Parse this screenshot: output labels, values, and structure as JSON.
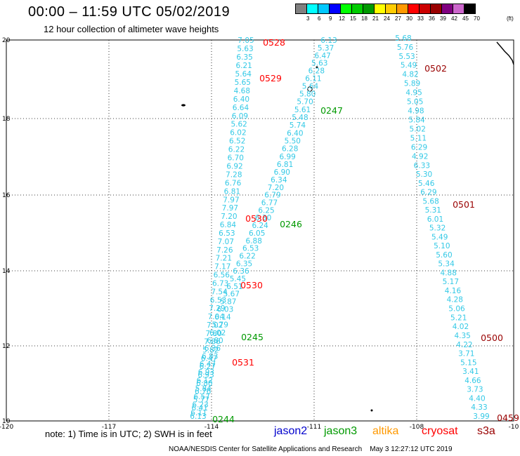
{
  "header": {
    "title": "00:00 – 11:59 UTC 05/02/2019",
    "subtitle": "12 hour collection of altimeter wave heights"
  },
  "legend": {
    "colors": [
      "#808080",
      "#00ffff",
      "#00c8ff",
      "#0000ff",
      "#00ff00",
      "#00cc00",
      "#009900",
      "#ffff00",
      "#ffcc00",
      "#ff9900",
      "#ff0000",
      "#cc0000",
      "#990000",
      "#800080",
      "#cc66cc",
      "#000000"
    ],
    "ticks": [
      "3",
      "6",
      "9",
      "12",
      "15",
      "18",
      "21",
      "24",
      "27",
      "30",
      "33",
      "36",
      "39",
      "42",
      "45",
      "70"
    ],
    "unit": "(ft)"
  },
  "chart_data": {
    "type": "map",
    "x_ticks": [
      "-120",
      "-117",
      "-114",
      "-111",
      "-108",
      "-10"
    ],
    "y_ticks": [
      "20",
      "18",
      "16",
      "14",
      "12",
      "10"
    ],
    "grid": true,
    "tracks": [
      {
        "id": "A",
        "values": [
          "7.05",
          "5.63",
          "6.35",
          "6.21",
          "5.64",
          "5.65",
          "4.68",
          "6.40",
          "6.64",
          "6.09",
          "5.62",
          "6.02",
          "6.52",
          "6.22",
          "6.70",
          "6.92",
          "7.28",
          "6.76",
          "6.81",
          "7.97",
          "7.97",
          "7.20",
          "6.84",
          "6.53",
          "7.07",
          "7.26",
          "7.21",
          "7.17",
          "6.56",
          "6.73",
          "7.54",
          "6.53",
          "7.29",
          "7.04",
          "7.02",
          "7.80",
          "7.86",
          "5.82",
          "6.47",
          "6.27",
          "6.93",
          "6.80",
          "6.76",
          "5.77",
          "6.41",
          "6.13"
        ]
      },
      {
        "id": "B",
        "values": [
          "6.13",
          "5.37",
          "6.47",
          "5.63",
          "6.28",
          "6.11",
          "5.64",
          "5.80",
          "5.70",
          "5.61",
          "5.48",
          "5.74",
          "6.40",
          "5.50",
          "6.28",
          "6.99",
          "6.81",
          "6.90",
          "6.34",
          "7.20",
          "6.79",
          "6.77",
          "6.25",
          "6.30",
          "6.24",
          "6.05",
          "6.88",
          "6.53",
          "6.22",
          "6.35",
          "6.36",
          "5.45",
          "6.51",
          "5.67",
          "5.87",
          "6.03",
          "6.14",
          "5.79",
          "6.02",
          "6.80",
          "6.36",
          "6.83",
          "6.47",
          "6.93",
          "6.12",
          "5.84",
          "6.57",
          "6.23",
          "6.11"
        ]
      },
      {
        "id": "C",
        "values": [
          "5.68",
          "5.76",
          "5.53",
          "5.49",
          "4.82",
          "5.89",
          "4.95",
          "5.05",
          "4.98",
          "5.84",
          "5.02",
          "5.11",
          "6.29",
          "4.92",
          "6.33",
          "5.30",
          "5.46",
          "6.29",
          "5.68",
          "5.31",
          "6.01",
          "5.32",
          "5.49",
          "5.10",
          "5.60",
          "5.34",
          "4.88",
          "5.17",
          "4.16",
          "4.28",
          "5.06",
          "5.21",
          "4.02",
          "4.35",
          "4.22",
          "3.71",
          "5.15",
          "3.41",
          "4.66",
          "3.73",
          "4.40",
          "4.33",
          "3.99"
        ]
      }
    ],
    "pass_labels": [
      {
        "text": "0528",
        "color": "#ff0000"
      },
      {
        "text": "0529",
        "color": "#ff0000"
      },
      {
        "text": "0530",
        "color": "#ff0000"
      },
      {
        "text": "0530",
        "color": "#ff0000"
      },
      {
        "text": "0531",
        "color": "#ff0000"
      },
      {
        "text": "0247",
        "color": "#009900"
      },
      {
        "text": "0246",
        "color": "#009900"
      },
      {
        "text": "0245",
        "color": "#009900"
      },
      {
        "text": "0244",
        "color": "#009900"
      },
      {
        "text": "0502",
        "color": "#990000"
      },
      {
        "text": "0501",
        "color": "#990000"
      },
      {
        "text": "0500",
        "color": "#990000"
      },
      {
        "text": "0459",
        "color": "#990000"
      }
    ]
  },
  "note": "note:  1) Time is in UTC; 2) SWH is in feet",
  "missions": [
    {
      "name": "jason2",
      "color": "#0000cc"
    },
    {
      "name": "jason3",
      "color": "#009900"
    },
    {
      "name": "altika",
      "color": "#ff9900"
    },
    {
      "name": "cryosat",
      "color": "#ff0000"
    },
    {
      "name": "s3a",
      "color": "#990000"
    }
  ],
  "footer": {
    "credit": "NOAA/NESDIS Center for Satellite Applications and Research",
    "timestamp": "May  3 12:27:12 UTC 2019"
  }
}
